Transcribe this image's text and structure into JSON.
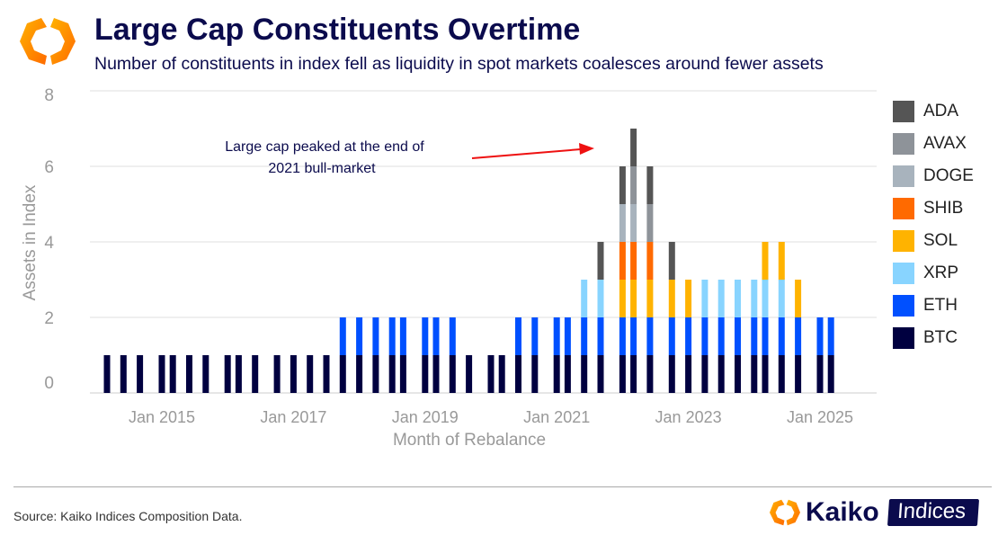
{
  "header": {
    "title": "Large Cap Constituents Overtime",
    "subtitle": "Number of constituents in index fell as liquidity in spot markets coalesces around fewer assets"
  },
  "chart_data": {
    "type": "bar",
    "stacked": true,
    "title": "Large Cap Constituents Overtime",
    "xlabel": "Month of Rebalance",
    "ylabel": "Assets in Index",
    "ylim": [
      0,
      8
    ],
    "yticks": [
      0,
      2,
      4,
      6,
      8
    ],
    "xticks": [
      "Jan 2015",
      "Jan 2017",
      "Jan 2019",
      "Jan 2021",
      "Jan 2023",
      "Jan 2025"
    ],
    "xtick_dates": [
      "2015-01",
      "2017-01",
      "2019-01",
      "2021-01",
      "2023-01",
      "2025-01"
    ],
    "grid": true,
    "legend_position": "right",
    "annotation": {
      "text_line1": "Large cap peaked at the end of",
      "text_line2": "2021 bull-market",
      "arrow_color": "#ee1111"
    },
    "x": [
      "2014-03",
      "2014-06",
      "2014-09",
      "2015-01",
      "2015-03",
      "2015-06",
      "2015-09",
      "2016-01",
      "2016-03",
      "2016-06",
      "2016-10",
      "2017-01",
      "2017-04",
      "2017-07",
      "2017-10",
      "2018-01",
      "2018-04",
      "2018-07",
      "2018-09",
      "2019-01",
      "2019-03",
      "2019-06",
      "2019-09",
      "2020-01",
      "2020-03",
      "2020-06",
      "2020-09",
      "2021-01",
      "2021-03",
      "2021-06",
      "2021-09",
      "2022-01",
      "2022-03",
      "2022-06",
      "2022-10",
      "2023-01",
      "2023-04",
      "2023-07",
      "2023-10",
      "2024-01",
      "2024-03",
      "2024-06",
      "2024-09",
      "2025-01",
      "2025-03"
    ],
    "series": [
      {
        "name": "BTC",
        "color": "#000040",
        "values": [
          1,
          1,
          1,
          1,
          1,
          1,
          1,
          1,
          1,
          1,
          1,
          1,
          1,
          1,
          1,
          1,
          1,
          1,
          1,
          1,
          1,
          1,
          1,
          1,
          1,
          1,
          1,
          1,
          1,
          1,
          1,
          1,
          1,
          1,
          1,
          1,
          1,
          1,
          1,
          1,
          1,
          1,
          1,
          1,
          1
        ]
      },
      {
        "name": "ETH",
        "color": "#0050ff",
        "values": [
          0,
          0,
          0,
          0,
          0,
          0,
          0,
          0,
          0,
          0,
          0,
          0,
          0,
          0,
          1,
          1,
          1,
          1,
          1,
          1,
          1,
          1,
          0,
          0,
          0,
          1,
          1,
          1,
          1,
          1,
          1,
          1,
          1,
          1,
          1,
          1,
          1,
          1,
          1,
          1,
          1,
          1,
          1,
          1,
          1
        ]
      },
      {
        "name": "XRP",
        "color": "#88d4ff",
        "values": [
          0,
          0,
          0,
          0,
          0,
          0,
          0,
          0,
          0,
          0,
          0,
          0,
          0,
          0,
          0,
          0,
          0,
          0,
          0,
          0,
          0,
          0,
          0,
          0,
          0,
          0,
          0,
          0,
          0,
          1,
          1,
          0,
          0,
          0,
          0,
          0,
          1,
          1,
          1,
          1,
          1,
          1,
          0,
          0,
          0
        ]
      },
      {
        "name": "SOL",
        "color": "#ffb300",
        "values": [
          0,
          0,
          0,
          0,
          0,
          0,
          0,
          0,
          0,
          0,
          0,
          0,
          0,
          0,
          0,
          0,
          0,
          0,
          0,
          0,
          0,
          0,
          0,
          0,
          0,
          0,
          0,
          0,
          0,
          0,
          0,
          1,
          1,
          1,
          1,
          1,
          0,
          0,
          0,
          0,
          1,
          1,
          1,
          0,
          0
        ]
      },
      {
        "name": "SHIB",
        "color": "#ff6a00",
        "values": [
          0,
          0,
          0,
          0,
          0,
          0,
          0,
          0,
          0,
          0,
          0,
          0,
          0,
          0,
          0,
          0,
          0,
          0,
          0,
          0,
          0,
          0,
          0,
          0,
          0,
          0,
          0,
          0,
          0,
          0,
          0,
          1,
          1,
          1,
          0,
          0,
          0,
          0,
          0,
          0,
          0,
          0,
          0,
          0,
          0
        ]
      },
      {
        "name": "DOGE",
        "color": "#a8b3bd",
        "values": [
          0,
          0,
          0,
          0,
          0,
          0,
          0,
          0,
          0,
          0,
          0,
          0,
          0,
          0,
          0,
          0,
          0,
          0,
          0,
          0,
          0,
          0,
          0,
          0,
          0,
          0,
          0,
          0,
          0,
          0,
          0,
          1,
          1,
          0,
          0,
          0,
          0,
          0,
          0,
          0,
          0,
          0,
          0,
          0,
          0
        ]
      },
      {
        "name": "AVAX",
        "color": "#8e9399",
        "values": [
          0,
          0,
          0,
          0,
          0,
          0,
          0,
          0,
          0,
          0,
          0,
          0,
          0,
          0,
          0,
          0,
          0,
          0,
          0,
          0,
          0,
          0,
          0,
          0,
          0,
          0,
          0,
          0,
          0,
          0,
          0,
          0,
          1,
          1,
          0,
          0,
          0,
          0,
          0,
          0,
          0,
          0,
          0,
          0,
          0
        ]
      },
      {
        "name": "ADA",
        "color": "#555555",
        "values": [
          0,
          0,
          0,
          0,
          0,
          0,
          0,
          0,
          0,
          0,
          0,
          0,
          0,
          0,
          0,
          0,
          0,
          0,
          0,
          0,
          0,
          0,
          0,
          0,
          0,
          0,
          0,
          0,
          0,
          0,
          1,
          1,
          1,
          1,
          1,
          0,
          0,
          0,
          0,
          0,
          0,
          0,
          0,
          0,
          0
        ]
      }
    ]
  },
  "footer": {
    "source": "Source: Kaiko Indices Composition Data.",
    "brand_name": "Kaiko",
    "brand_tag": "Indices"
  }
}
